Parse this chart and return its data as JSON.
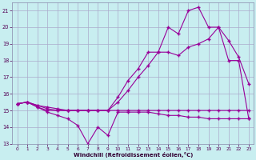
{
  "xlabel": "Windchill (Refroidissement éolien,°C)",
  "background_color": "#c8eef0",
  "grid_color": "#aaaacc",
  "line_color": "#990099",
  "xlim": [
    -0.5,
    23.5
  ],
  "ylim": [
    13.0,
    21.5
  ],
  "yticks": [
    13,
    14,
    15,
    16,
    17,
    18,
    19,
    20,
    21
  ],
  "xticks": [
    0,
    1,
    2,
    3,
    4,
    5,
    6,
    7,
    8,
    9,
    10,
    11,
    12,
    13,
    14,
    15,
    16,
    17,
    18,
    19,
    20,
    21,
    22,
    23
  ],
  "line1_x": [
    0,
    1,
    2,
    3,
    4,
    5,
    6,
    7,
    8,
    9,
    10,
    11,
    12,
    13,
    14,
    15,
    16,
    17,
    18,
    19,
    20,
    21,
    22,
    23
  ],
  "line1_y": [
    15.4,
    15.5,
    15.2,
    14.9,
    14.7,
    14.5,
    14.1,
    13.0,
    14.0,
    13.5,
    14.9,
    14.9,
    14.9,
    14.9,
    14.8,
    14.7,
    14.7,
    14.6,
    14.6,
    14.5,
    14.5,
    14.5,
    14.5,
    14.5
  ],
  "line2_x": [
    0,
    1,
    2,
    3,
    4,
    5,
    6,
    7,
    8,
    9,
    10,
    11,
    12,
    13,
    14,
    15,
    16,
    17,
    18,
    19,
    20,
    21,
    22,
    23
  ],
  "line2_y": [
    15.4,
    15.5,
    15.2,
    15.0,
    15.0,
    15.0,
    15.0,
    15.0,
    15.0,
    15.0,
    15.0,
    15.0,
    15.0,
    15.0,
    15.0,
    15.0,
    15.0,
    15.0,
    15.0,
    15.0,
    15.0,
    15.0,
    15.0,
    15.0
  ],
  "line3_x": [
    0,
    1,
    2,
    3,
    4,
    5,
    6,
    7,
    8,
    9,
    10,
    11,
    12,
    13,
    14,
    15,
    16,
    17,
    18,
    19,
    20,
    21,
    22,
    23
  ],
  "line3_y": [
    15.4,
    15.5,
    15.3,
    15.2,
    15.1,
    15.0,
    15.0,
    15.0,
    15.0,
    15.0,
    15.5,
    16.2,
    17.0,
    17.7,
    18.5,
    18.5,
    18.3,
    18.8,
    19.0,
    19.3,
    20.0,
    19.2,
    18.2,
    16.6
  ],
  "line4_x": [
    0,
    1,
    2,
    3,
    4,
    5,
    6,
    7,
    8,
    9,
    10,
    11,
    12,
    13,
    14,
    15,
    16,
    17,
    18,
    19,
    20,
    21,
    22,
    23
  ],
  "line4_y": [
    15.4,
    15.5,
    15.3,
    15.1,
    15.0,
    15.0,
    15.0,
    15.0,
    15.0,
    15.0,
    15.8,
    16.8,
    17.5,
    18.5,
    18.5,
    20.0,
    19.6,
    21.0,
    21.2,
    20.0,
    20.0,
    18.0,
    18.0,
    14.5
  ]
}
